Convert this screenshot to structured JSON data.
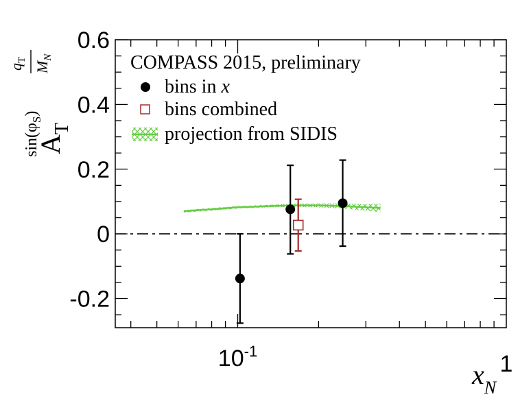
{
  "chart_data": {
    "type": "scatter",
    "title": "",
    "xscale": "log",
    "xlim": [
      0.035,
      1.0
    ],
    "ylim": [
      -0.29,
      0.6
    ],
    "yticks": [
      {
        "value": 0.6,
        "label": "0.6"
      },
      {
        "value": 0.4,
        "label": "0.4"
      },
      {
        "value": 0.2,
        "label": "0.2"
      },
      {
        "value": 0.0,
        "label": "0"
      },
      {
        "value": -0.2,
        "label": "-0.2"
      }
    ],
    "xticks": [
      {
        "value": 0.1,
        "label_base": "10",
        "label_exp": "-1"
      },
      {
        "value": 1.0,
        "label_base": "1",
        "label_exp": ""
      }
    ],
    "xlabel": {
      "main": "x",
      "sub": "N"
    },
    "ylabel": {
      "main": "A",
      "main_sub": "T",
      "sup_func": "sin(φ",
      "sup_func_sub": "S",
      "sup_func_close": ")",
      "frac_num": "q",
      "frac_num_sub": "T",
      "frac_den": "M",
      "frac_den_sub": "N"
    },
    "legend": {
      "title": "COMPASS 2015, preliminary",
      "entries": [
        {
          "marker": "filled-circle",
          "text": "bins in ",
          "text_italic": "x"
        },
        {
          "marker": "open-square",
          "text": "bins combined",
          "text_italic": ""
        },
        {
          "marker": "hatched-band",
          "text": "projection from SIDIS",
          "text_italic": ""
        }
      ]
    },
    "series": [
      {
        "name": "bins in x",
        "color": "#000000",
        "points": [
          {
            "x": 0.102,
            "y": -0.138,
            "err_low": 0.138,
            "err_high": 0.138
          },
          {
            "x": 0.157,
            "y": 0.076,
            "err_low": 0.138,
            "err_high": 0.136
          },
          {
            "x": 0.246,
            "y": 0.095,
            "err_low": 0.133,
            "err_high": 0.133
          }
        ]
      },
      {
        "name": "bins combined",
        "color": "#a52a2a",
        "points": [
          {
            "x": 0.168,
            "y": 0.027,
            "err_low": 0.08,
            "err_high": 0.08
          }
        ]
      },
      {
        "name": "projection from SIDIS",
        "color": "#66cc44",
        "band": [
          {
            "x": 0.063,
            "y": 0.07,
            "halfwidth": 0.004
          },
          {
            "x": 0.08,
            "y": 0.076,
            "halfwidth": 0.004
          },
          {
            "x": 0.1,
            "y": 0.082,
            "halfwidth": 0.004
          },
          {
            "x": 0.13,
            "y": 0.086,
            "halfwidth": 0.004
          },
          {
            "x": 0.16,
            "y": 0.088,
            "halfwidth": 0.005
          },
          {
            "x": 0.2,
            "y": 0.088,
            "halfwidth": 0.006
          },
          {
            "x": 0.25,
            "y": 0.086,
            "halfwidth": 0.008
          },
          {
            "x": 0.3,
            "y": 0.082,
            "halfwidth": 0.01
          },
          {
            "x": 0.34,
            "y": 0.08,
            "halfwidth": 0.013
          }
        ]
      }
    ],
    "reference_line": {
      "y": 0.0,
      "style": "dash-dot"
    }
  }
}
